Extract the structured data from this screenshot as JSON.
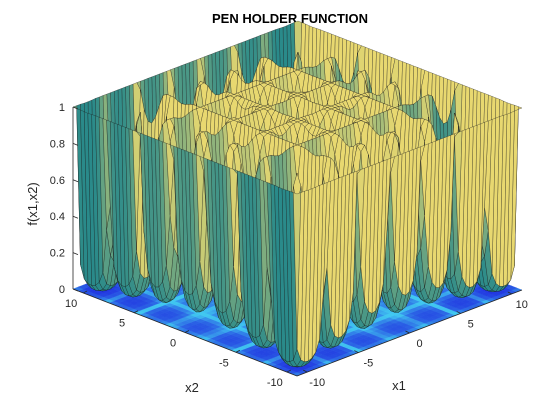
{
  "chart_data": {
    "type": "surface",
    "title": "PEN HOLDER FUNCTION",
    "xlabel": "x1",
    "ylabel": "x2",
    "zlabel": "f(x1,x2)",
    "xlim": [
      -11,
      11
    ],
    "ylim": [
      -11,
      11
    ],
    "zlim": [
      0,
      1
    ],
    "x_ticks": [
      -10,
      -5,
      0,
      5,
      10
    ],
    "y_ticks": [
      -10,
      -5,
      0,
      5,
      10
    ],
    "z_ticks": [
      0,
      0.2,
      0.4,
      0.6,
      0.8,
      1
    ],
    "z_tick_labels": [
      "0",
      "0.2",
      "0.4",
      "0.6",
      "0.8",
      "1"
    ],
    "has_contour_floor": true,
    "grid": false,
    "colors": {
      "surface_high": "#e8d870",
      "surface_low": "#2a8a8a",
      "floor_low": "#2030e0",
      "floor_high": "#40c8f0",
      "mesh": "#1a1a1a"
    }
  }
}
